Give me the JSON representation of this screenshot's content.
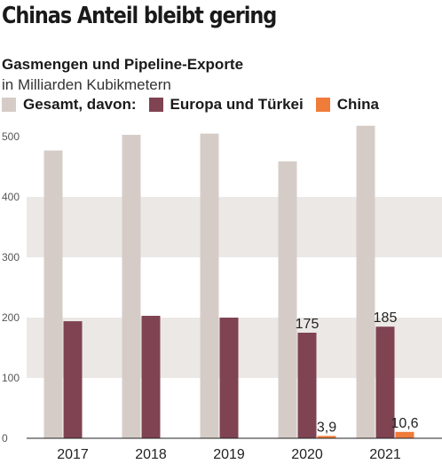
{
  "header": {
    "title": "Chinas Anteil bleibt gering",
    "subtitle": "Gasmengen und Pipeline-Exporte",
    "unit": "in Milliarden Kubikmetern"
  },
  "legend": [
    {
      "label": "Gesamt, davon:",
      "color": "#d6ccc7"
    },
    {
      "label": "Europa und Türkei",
      "color": "#7f4352"
    },
    {
      "label": "China",
      "color": "#f07c3a"
    }
  ],
  "chart_data": {
    "type": "bar",
    "categories": [
      "2017",
      "2018",
      "2019",
      "2020",
      "2021"
    ],
    "series": [
      {
        "name": "Gesamt, davon:",
        "color": "#d6ccc7",
        "values": [
          477,
          503,
          505,
          459,
          518
        ]
      },
      {
        "name": "Europa und Türkei",
        "color": "#7f4352",
        "values": [
          194,
          203,
          200,
          175,
          185
        ]
      },
      {
        "name": "China",
        "color": "#f07c3a",
        "values": [
          0,
          0,
          0,
          3.9,
          10.6
        ]
      }
    ],
    "data_labels": [
      {
        "category": "2020",
        "series": "Europa und Türkei",
        "text": "175"
      },
      {
        "category": "2020",
        "series": "China",
        "text": "3,9"
      },
      {
        "category": "2021",
        "series": "Europa und Türkei",
        "text": "185"
      },
      {
        "category": "2021",
        "series": "China",
        "text": "10,6"
      }
    ],
    "yticks": [
      0,
      100,
      200,
      300,
      400,
      500
    ],
    "ylim": [
      0,
      500
    ],
    "band_color": "#ebe8e6",
    "grid": true
  }
}
